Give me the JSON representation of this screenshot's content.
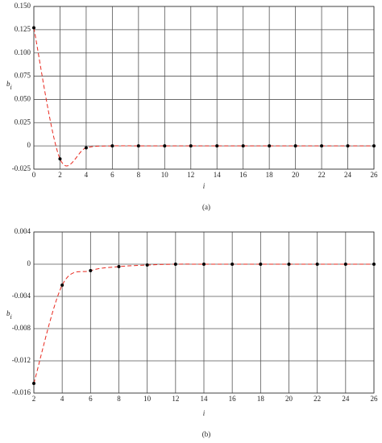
{
  "chart_data": [
    {
      "type": "line",
      "caption": "(a)",
      "x_label": "i",
      "y_label": {
        "base": "b",
        "sub": "i"
      },
      "x": [
        0,
        2,
        4,
        6,
        8,
        10,
        12,
        14,
        16,
        18,
        20,
        22,
        24,
        26
      ],
      "series": [
        {
          "color": "#e8281e",
          "values": [
            0.127,
            -0.014,
            -0.002,
            0,
            0,
            0,
            0,
            0,
            0,
            0,
            0,
            0,
            0,
            0
          ]
        }
      ],
      "xlim": [
        0,
        26
      ],
      "xticks": [
        0,
        2,
        4,
        6,
        8,
        10,
        12,
        14,
        16,
        18,
        20,
        22,
        24,
        26
      ],
      "ylim": [
        -0.025,
        0.15
      ],
      "yticks": [
        -0.025,
        0,
        0.025,
        {
          "value": 0.05,
          "label": "0.050"
        },
        0.075,
        {
          "value": 0.1,
          "label": "0.100"
        },
        0.125,
        {
          "value": 0.15,
          "label": "0.150"
        }
      ],
      "grid": true
    },
    {
      "type": "line",
      "caption": "(b)",
      "x_label": "i",
      "y_label": {
        "base": "b",
        "sub": "i"
      },
      "x": [
        2,
        4,
        6,
        8,
        10,
        12,
        14,
        16,
        18,
        20,
        22,
        24,
        26
      ],
      "series": [
        {
          "color": "#e8281e",
          "values": [
            -0.0148,
            -0.0026,
            -0.0008,
            -0.0003,
            -0.0001,
            0,
            0,
            0,
            0,
            0,
            0,
            0,
            0
          ]
        }
      ],
      "xlim": [
        2,
        26
      ],
      "xticks": [
        2,
        4,
        6,
        8,
        10,
        12,
        14,
        16,
        18,
        20,
        22,
        24,
        26
      ],
      "ylim": [
        -0.016,
        0.004
      ],
      "yticks": [
        -0.016,
        -0.012,
        -0.008,
        -0.004,
        0,
        0.004
      ],
      "grid": true
    }
  ]
}
